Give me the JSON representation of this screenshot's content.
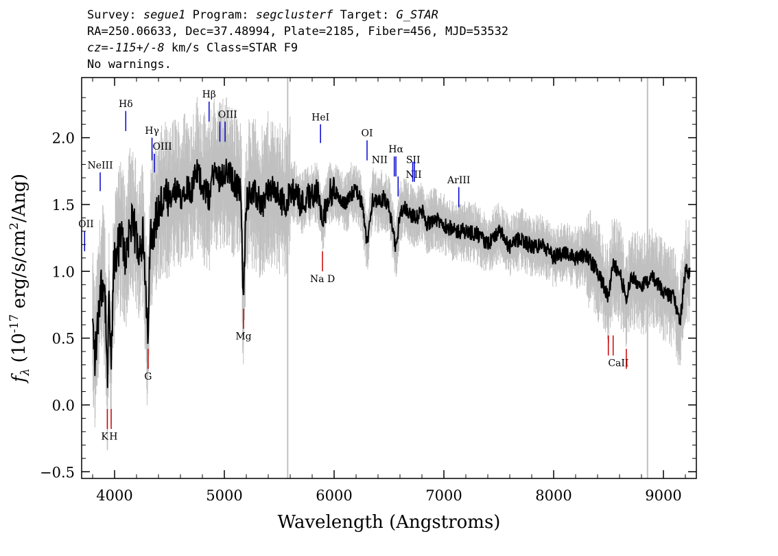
{
  "header": {
    "survey_label": "Survey:",
    "survey": "segue1",
    "program_label": "Program:",
    "program": "segclusterf",
    "target_label": "Target:",
    "target": "G_STAR",
    "line2": "RA=250.06633, Dec=37.48994, Plate=2185, Fiber=456, MJD=53532",
    "cz_label": "cz=",
    "cz_value": "-115+/-8",
    "cz_suffix": "km/s Class=STAR F9",
    "warnings": "No warnings."
  },
  "colors": {
    "flux": "#000000",
    "error_band": "#c0c0c0",
    "emission_marker": "#0000cc",
    "absorption_marker": "#cc0000",
    "sky_lines": "#c0c0c0"
  },
  "chart_data": {
    "type": "line",
    "xlabel": "Wavelength (Angstroms)",
    "ylabel_main": "f",
    "ylabel_sub": "λ",
    "ylabel_units": " (10",
    "ylabel_exp": "-17",
    "ylabel_tail": " erg/s/cm",
    "ylabel_exp2": "2",
    "ylabel_end": "/Ang)",
    "xlim": [
      3700,
      9300
    ],
    "ylim": [
      -0.55,
      2.45
    ],
    "xticks": [
      4000,
      5000,
      6000,
      7000,
      8000,
      9000
    ],
    "xtick_labels": [
      "4000",
      "5000",
      "6000",
      "7000",
      "8000",
      "9000"
    ],
    "yticks": [
      -0.5,
      0.0,
      0.5,
      1.0,
      1.5,
      2.0
    ],
    "ytick_labels": [
      "−0.5",
      "0.0",
      "0.5",
      "1.0",
      "1.5",
      "2.0"
    ],
    "sky_lines": [
      5577,
      8855
    ],
    "series": [
      {
        "kind": "flux",
        "x": [
          3800,
          3820,
          3840,
          3860,
          3880,
          3900,
          3920,
          3934,
          3950,
          3968,
          3990,
          4020,
          4060,
          4101,
          4140,
          4180,
          4220,
          4260,
          4300,
          4330,
          4360,
          4400,
          4450,
          4500,
          4550,
          4600,
          4650,
          4700,
          4750,
          4800,
          4861,
          4900,
          4950,
          5000,
          5050,
          5100,
          5150,
          5172,
          5200,
          5250,
          5300,
          5350,
          5400,
          5450,
          5500,
          5550,
          5600,
          5650,
          5700,
          5750,
          5800,
          5850,
          5893,
          5950,
          6000,
          6050,
          6100,
          6150,
          6200,
          6250,
          6300,
          6350,
          6400,
          6450,
          6500,
          6563,
          6600,
          6650,
          6700,
          6750,
          6800,
          6850,
          6900,
          7000,
          7100,
          7200,
          7300,
          7400,
          7500,
          7600,
          7700,
          7800,
          7900,
          8000,
          8100,
          8200,
          8300,
          8400,
          8498,
          8542,
          8600,
          8662,
          8700,
          8800,
          8900,
          9000,
          9100,
          9150,
          9200
        ],
        "y": [
          0.6,
          0.35,
          0.5,
          0.8,
          0.9,
          0.95,
          0.7,
          0.1,
          0.85,
          0.2,
          1.0,
          1.15,
          1.25,
          1.1,
          1.35,
          1.3,
          1.2,
          1.25,
          0.5,
          1.3,
          1.35,
          1.45,
          1.55,
          1.5,
          1.6,
          1.55,
          1.65,
          1.6,
          1.75,
          1.65,
          1.55,
          1.75,
          1.7,
          1.75,
          1.72,
          1.65,
          1.6,
          0.75,
          1.55,
          1.6,
          1.55,
          1.5,
          1.62,
          1.6,
          1.55,
          1.5,
          1.58,
          1.6,
          1.5,
          1.55,
          1.58,
          1.6,
          1.35,
          1.58,
          1.6,
          1.55,
          1.5,
          1.58,
          1.6,
          1.52,
          1.2,
          1.55,
          1.5,
          1.55,
          1.48,
          1.15,
          1.45,
          1.48,
          1.42,
          1.4,
          1.45,
          1.35,
          1.4,
          1.35,
          1.3,
          1.3,
          1.28,
          1.2,
          1.3,
          1.18,
          1.25,
          1.18,
          1.2,
          1.1,
          1.15,
          1.1,
          1.12,
          1.0,
          0.8,
          1.05,
          1.0,
          0.8,
          0.95,
          0.9,
          0.95,
          0.85,
          0.8,
          0.6,
          1.0
        ]
      }
    ],
    "error_halfwidth_blue": 0.45,
    "error_halfwidth_red": 0.18,
    "line_markers": [
      {
        "label": "OII",
        "wave": 3727,
        "y0": 1.15,
        "y1": 1.3,
        "type": "emission",
        "lx": 3740,
        "ly": 1.33
      },
      {
        "label": "NeIII",
        "wave": 3869,
        "y0": 1.6,
        "y1": 1.74,
        "type": "emission",
        "lx": 3869,
        "ly": 1.77
      },
      {
        "label": "Hδ",
        "wave": 4102,
        "y0": 2.05,
        "y1": 2.2,
        "type": "emission",
        "lx": 4102,
        "ly": 2.23
      },
      {
        "label": "Hγ",
        "wave": 4341,
        "y0": 1.83,
        "y1": 2.0,
        "type": "emission",
        "lx": 4341,
        "ly": 2.03
      },
      {
        "label": "OIII",
        "wave": 4363,
        "y0": 1.74,
        "y1": 1.88,
        "type": "emission",
        "lx": 4435,
        "ly": 1.91
      },
      {
        "label": "Hβ",
        "wave": 4861,
        "y0": 2.12,
        "y1": 2.27,
        "type": "emission",
        "lx": 4861,
        "ly": 2.3
      },
      {
        "label": "OIII",
        "wave": 4959,
        "y0": 1.97,
        "y1": 2.12,
        "type": "emission",
        "lx": 5030,
        "ly": 2.15
      },
      {
        "label": "OIII",
        "wave": 5007,
        "y0": 1.97,
        "y1": 2.12,
        "type": "emission",
        "lx": null,
        "ly": null
      },
      {
        "label": "HeI",
        "wave": 5876,
        "y0": 1.96,
        "y1": 2.1,
        "type": "emission",
        "lx": 5876,
        "ly": 2.13
      },
      {
        "label": "OI",
        "wave": 6300,
        "y0": 1.83,
        "y1": 1.98,
        "type": "emission",
        "lx": 6300,
        "ly": 2.01
      },
      {
        "label": "NII",
        "wave": 6548,
        "y0": 1.71,
        "y1": 1.86,
        "type": "emission",
        "lx": 6415,
        "ly": 1.81
      },
      {
        "label": "Hα",
        "wave": 6563,
        "y0": 1.71,
        "y1": 1.86,
        "type": "emission",
        "lx": 6563,
        "ly": 1.89
      },
      {
        "label": "NII",
        "wave": 6583,
        "y0": 1.56,
        "y1": 1.71,
        "type": "emission",
        "lx": 6725,
        "ly": 1.7
      },
      {
        "label": "SII",
        "wave": 6716,
        "y0": 1.67,
        "y1": 1.82,
        "type": "emission",
        "lx": 6720,
        "ly": 1.81
      },
      {
        "label": "SII",
        "wave": 6731,
        "y0": 1.67,
        "y1": 1.82,
        "type": "emission",
        "lx": null,
        "ly": null
      },
      {
        "label": "ArIII",
        "wave": 7136,
        "y0": 1.48,
        "y1": 1.63,
        "type": "emission",
        "lx": 7136,
        "ly": 1.66
      },
      {
        "label": "K",
        "wave": 3934,
        "y0": -0.18,
        "y1": -0.03,
        "type": "absorption",
        "lx": 3910,
        "ly": -0.26
      },
      {
        "label": "H",
        "wave": 3969,
        "y0": -0.18,
        "y1": -0.03,
        "type": "absorption",
        "lx": 3990,
        "ly": -0.26
      },
      {
        "label": "G",
        "wave": 4305,
        "y0": 0.27,
        "y1": 0.42,
        "type": "absorption",
        "lx": 4305,
        "ly": 0.19
      },
      {
        "label": "Mg",
        "wave": 5175,
        "y0": 0.57,
        "y1": 0.72,
        "type": "absorption",
        "lx": 5175,
        "ly": 0.49
      },
      {
        "label": "Na D",
        "wave": 5894,
        "y0": 1.0,
        "y1": 1.15,
        "type": "absorption",
        "lx": 5894,
        "ly": 0.92
      },
      {
        "label": "CaII",
        "wave": 8498,
        "y0": 0.37,
        "y1": 0.52,
        "type": "absorption",
        "lx": 8590,
        "ly": 0.29
      },
      {
        "label": "CaII",
        "wave": 8542,
        "y0": 0.37,
        "y1": 0.52,
        "type": "absorption",
        "lx": null,
        "ly": null
      },
      {
        "label": "CaII",
        "wave": 8662,
        "y0": 0.27,
        "y1": 0.42,
        "type": "absorption",
        "lx": null,
        "ly": null
      }
    ]
  }
}
